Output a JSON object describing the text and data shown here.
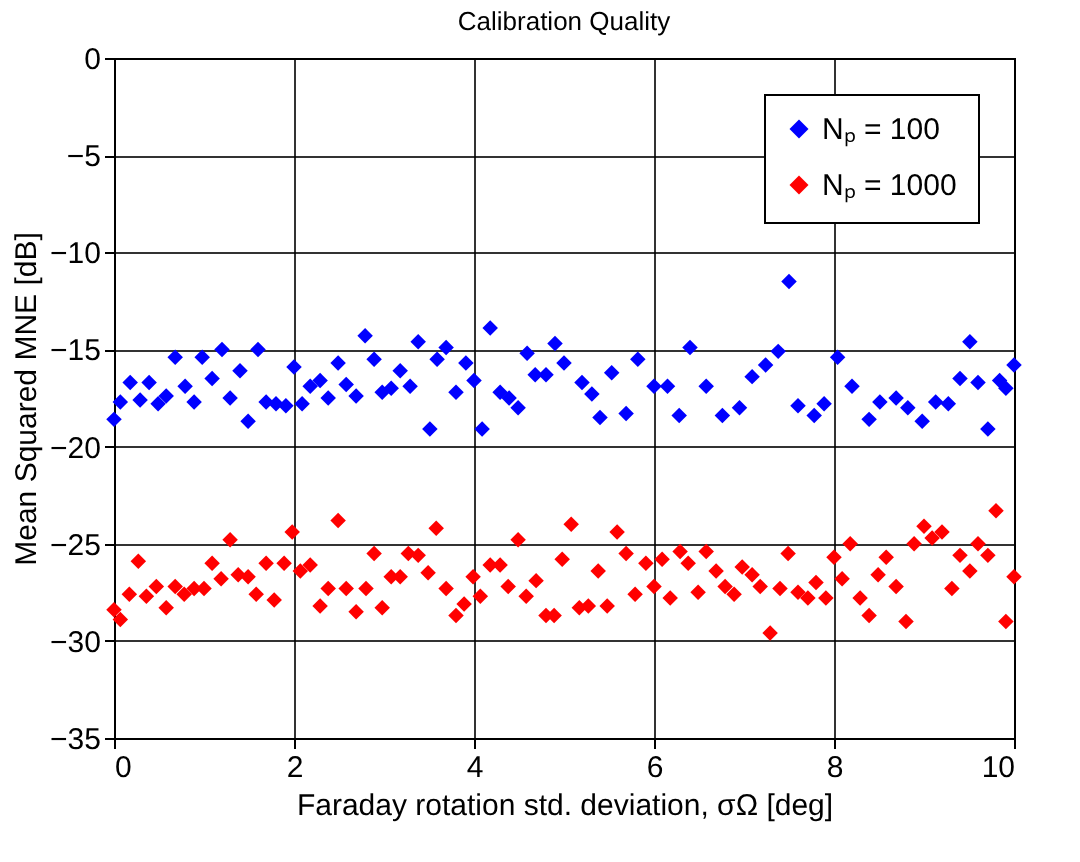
{
  "chart_data": {
    "type": "scatter",
    "title": "Calibration Quality",
    "xlabel": "Faraday rotation std. deviation, σΩ [deg]",
    "ylabel": "Mean Squared MNE [dB]",
    "xlim": [
      0,
      10
    ],
    "xticks": [
      0,
      2,
      4,
      6,
      8,
      10
    ],
    "ylim": [
      -35,
      0
    ],
    "yticks": [
      -35,
      -30,
      -25,
      -20,
      -15,
      -10,
      -5,
      0
    ],
    "grid": true,
    "legend": "top right",
    "marker": "diamond",
    "series": [
      {
        "name": "Nₚ = 100",
        "color": "#0000ff",
        "x": [
          0,
          0.07,
          0.18,
          0.29,
          0.39,
          0.49,
          0.58,
          0.68,
          0.79,
          0.89,
          0.98,
          1.09,
          1.2,
          1.29,
          1.4,
          1.49,
          1.6,
          1.69,
          1.8,
          1.91,
          2,
          2.09,
          2.18,
          2.29,
          2.38,
          2.49,
          2.58,
          2.69,
          2.79,
          2.89,
          2.98,
          3.08,
          3.18,
          3.29,
          3.38,
          3.51,
          3.59,
          3.69,
          3.8,
          3.91,
          4,
          4.09,
          4.18,
          4.29,
          4.39,
          4.49,
          4.59,
          4.68,
          4.8,
          4.9,
          5,
          5.2,
          5.31,
          5.4,
          5.53,
          5.69,
          5.82,
          6,
          6.15,
          6.28,
          6.4,
          6.58,
          6.76,
          6.95,
          7.09,
          7.24,
          7.38,
          7.5,
          7.6,
          7.78,
          7.89,
          8.04,
          8.2,
          8.39,
          8.51,
          8.69,
          8.82,
          8.98,
          9.13,
          9.27,
          9.4,
          9.51,
          9.6,
          9.71,
          9.84,
          9.91,
          10
        ],
        "values": [
          -18.6,
          -17.7,
          -16.7,
          -17.6,
          -16.7,
          -17.8,
          -17.4,
          -15.4,
          -16.9,
          -17.7,
          -15.4,
          -16.5,
          -15,
          -17.5,
          -16.1,
          -18.7,
          -15,
          -17.7,
          -17.8,
          -17.9,
          -15.9,
          -17.8,
          -16.9,
          -16.6,
          -17.5,
          -15.7,
          -16.8,
          -17.4,
          -14.3,
          -15.5,
          -17.2,
          -17,
          -16.1,
          -16.9,
          -14.6,
          -19.1,
          -15.5,
          -14.9,
          -17.2,
          -15.7,
          -16.6,
          -19.1,
          -13.9,
          -17.2,
          -17.5,
          -18,
          -15.2,
          -16.3,
          -16.3,
          -14.7,
          -15.7,
          -16.7,
          -17.3,
          -18.5,
          -16.2,
          -18.3,
          -15.5,
          -16.9,
          -16.9,
          -18.4,
          -14.9,
          -16.9,
          -18.4,
          -18,
          -16.4,
          -15.8,
          -15.1,
          -11.5,
          -17.9,
          -18.4,
          -17.8,
          -15.4,
          -16.9,
          -18.6,
          -17.7,
          -17.5,
          -18,
          -18.7,
          -17.7,
          -17.8,
          -16.5,
          -14.6,
          -16.7,
          -19.1,
          -16.6,
          -17,
          -15.8
        ]
      },
      {
        "name": "Nₚ = 1000",
        "color": "#ff0000",
        "x": [
          0,
          0.07,
          0.17,
          0.27,
          0.36,
          0.47,
          0.58,
          0.68,
          0.78,
          0.89,
          1,
          1.09,
          1.19,
          1.29,
          1.38,
          1.49,
          1.58,
          1.69,
          1.78,
          1.89,
          1.98,
          2.07,
          2.18,
          2.29,
          2.38,
          2.49,
          2.58,
          2.69,
          2.8,
          2.89,
          2.98,
          3.08,
          3.18,
          3.27,
          3.38,
          3.49,
          3.58,
          3.69,
          3.8,
          3.89,
          3.99,
          4.07,
          4.18,
          4.29,
          4.38,
          4.49,
          4.58,
          4.69,
          4.8,
          4.89,
          4.98,
          5.08,
          5.17,
          5.27,
          5.38,
          5.48,
          5.59,
          5.69,
          5.79,
          5.91,
          6,
          6.09,
          6.18,
          6.29,
          6.38,
          6.49,
          6.58,
          6.69,
          6.79,
          6.89,
          6.98,
          7.09,
          7.18,
          7.29,
          7.4,
          7.49,
          7.6,
          7.71,
          7.8,
          7.91,
          8,
          8.09,
          8.18,
          8.29,
          8.39,
          8.49,
          8.58,
          8.69,
          8.8,
          8.89,
          9,
          9.09,
          9.2,
          9.31,
          9.4,
          9.51,
          9.6,
          9.71,
          9.8,
          9.91,
          10
        ],
        "values": [
          -28.4,
          -28.9,
          -27.6,
          -25.9,
          -27.7,
          -27.2,
          -28.3,
          -27.2,
          -27.6,
          -27.3,
          -27.3,
          -26,
          -26.8,
          -24.8,
          -26.6,
          -26.7,
          -27.6,
          -26,
          -27.9,
          -26,
          -24.4,
          -26.4,
          -26.1,
          -28.2,
          -27.3,
          -23.8,
          -27.3,
          -28.5,
          -27.3,
          -25.5,
          -28.3,
          -26.7,
          -26.7,
          -25.5,
          -25.6,
          -26.5,
          -24.2,
          -27.3,
          -28.7,
          -28.1,
          -26.7,
          -27.7,
          -26.1,
          -26.1,
          -27.2,
          -24.8,
          -27.7,
          -26.9,
          -28.7,
          -28.7,
          -25.8,
          -24,
          -28.3,
          -28.2,
          -26.4,
          -28.2,
          -24.4,
          -25.5,
          -27.6,
          -26,
          -27.2,
          -25.8,
          -27.8,
          -25.4,
          -26,
          -27.5,
          -25.4,
          -26.4,
          -27.2,
          -27.6,
          -26.2,
          -26.6,
          -27.2,
          -29.6,
          -27.3,
          -25.5,
          -27.5,
          -27.8,
          -27,
          -27.8,
          -25.7,
          -26.8,
          -25,
          -27.8,
          -28.7,
          -26.6,
          -25.7,
          -27.2,
          -29,
          -25,
          -24.1,
          -24.7,
          -24.4,
          -27.3,
          -25.6,
          -26.4,
          -25,
          -25.6,
          -23.3,
          -29,
          -26.7
        ]
      }
    ]
  }
}
